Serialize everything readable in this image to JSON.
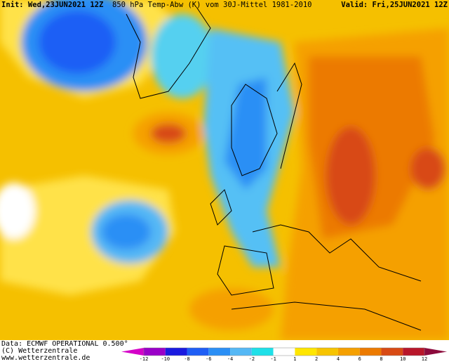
{
  "header": {
    "init": "Init: Wed,23JUN2021 12Z",
    "title": "850 hPa Temp-Abw (K) vom 30J-Mittel 1981-2010",
    "valid": "Valid: Fri,25JUN2021 12Z"
  },
  "footer": {
    "data": "Data: ECMWF OPERATIONAL 0.500°",
    "copyright": "(C) Wetterzentrale",
    "url": "www.wetterzentrale.de"
  },
  "colorbar": {
    "ticks": [
      -12,
      -10,
      -8,
      -6,
      -4,
      -2,
      -1,
      1,
      2,
      4,
      6,
      8,
      10,
      12
    ],
    "colors": [
      "#d400c8",
      "#9a00c8",
      "#1a1ae0",
      "#1f5ef5",
      "#2b8ff5",
      "#55b8f5",
      "#1fe0e8",
      "#ffffff",
      "#ffe600",
      "#f7c400",
      "#f5a000",
      "#ec7a00",
      "#d84a14",
      "#b8162a",
      "#8c0a3c"
    ]
  }
}
